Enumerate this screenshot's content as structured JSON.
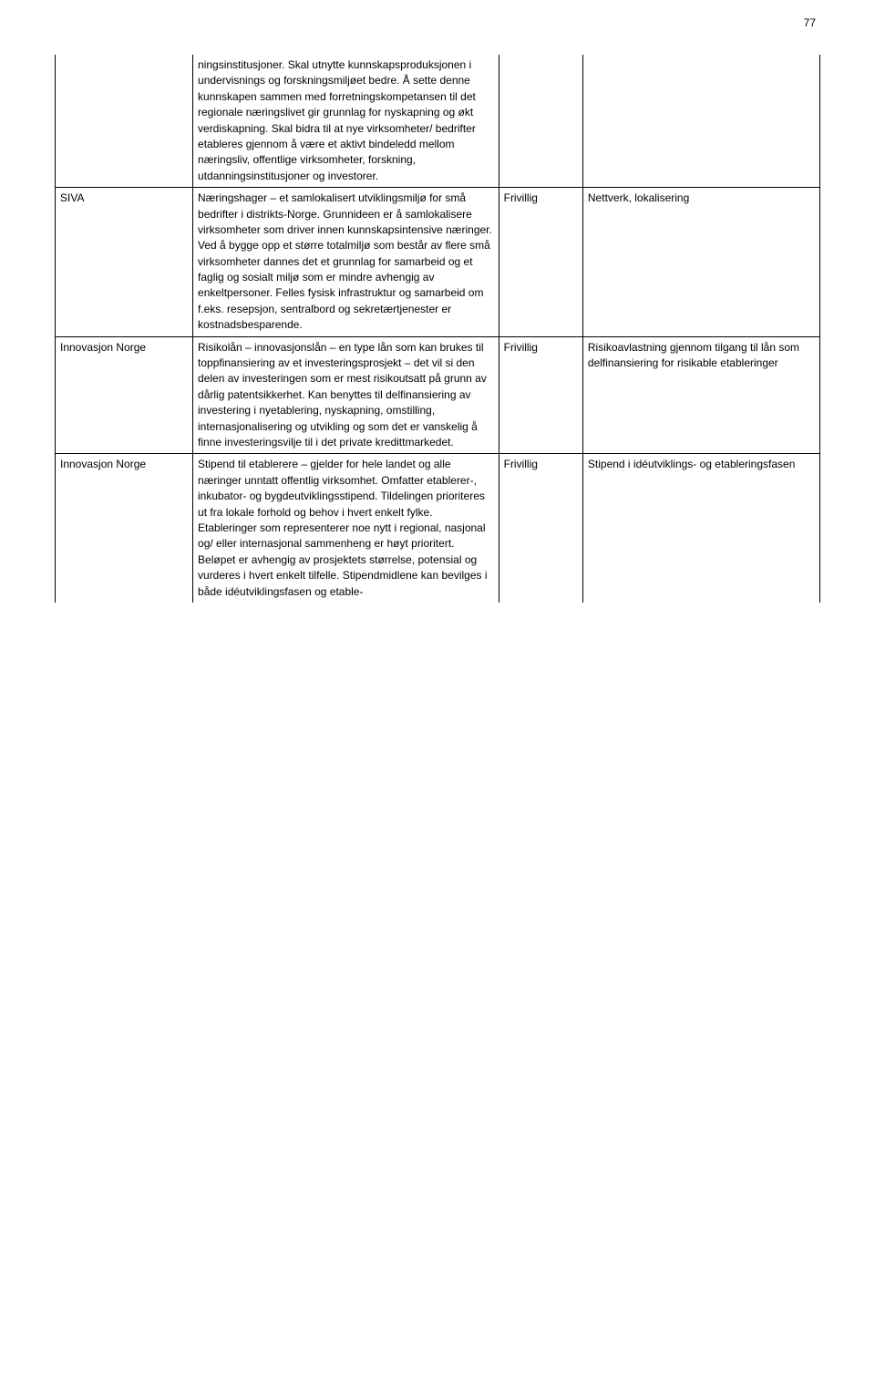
{
  "page_number": "77",
  "rows": [
    {
      "col1": "",
      "col2": "ningsinstitusjoner. Skal utnytte kunnskapsproduksjonen i undervisnings og forskningsmiljøet bedre. Å sette denne kunnskapen sammen med forretningskompetansen til det regionale næringslivet gir grunnlag for nyskapning og økt verdiskapning. Skal bidra til at nye virksomheter/ bedrifter etableres gjennom å være et aktivt bindeledd mellom næringsliv, offentlige virksomheter, forskning, utdanningsinstitusjoner og investorer.",
      "col3": "",
      "col4": ""
    },
    {
      "col1": "SIVA",
      "col2": "Næringshager – et samlokalisert utviklingsmiljø for små bedrifter i distrikts-Norge. Grunnideen er å samlokalisere virksomheter som driver innen kunnskapsintensive næringer. Ved å bygge opp et større totalmiljø som består av flere små virksomheter dannes det et grunnlag for samarbeid og et faglig og sosialt miljø som er mindre avhengig av enkeltpersoner. Felles fysisk infrastruktur og samarbeid om f.eks. resepsjon, sentralbord og sekretærtjenester er kostnadsbesparende.",
      "col3": "Frivillig",
      "col4": "Nettverk, lokalisering"
    },
    {
      "col1": "Innovasjon Norge",
      "col2": "Risikolån – innovasjonslån – en type lån som kan brukes til toppfinansiering av et investeringsprosjekt – det vil si den delen av investeringen som er mest risikoutsatt på grunn av dårlig patentsikkerhet. Kan benyttes til delfinansiering av investering i nyetablering, nyskapning, omstilling, internasjonalisering og utvikling og som det er vanskelig å finne investeringsvilje til i det private kredittmarkedet.",
      "col3": "Frivillig",
      "col4": "Risikoavlastning gjennom tilgang til lån som delfinansiering for risikable etableringer"
    },
    {
      "col1": "Innovasjon Norge",
      "col2": "Stipend til etablerere – gjelder for hele landet og alle næringer unntatt offentlig virksomhet. Omfatter etablerer-, inkubator- og bygdeutviklingsstipend. Tildelingen prioriteres ut fra lokale forhold og behov i hvert enkelt fylke. Etableringer som representerer noe nytt i regional, nasjonal og/ eller internasjonal sammenheng er høyt prioritert. Beløpet er avhengig av prosjektets størrelse, potensial og vurderes i hvert enkelt tilfelle. Stipendmidlene kan bevilges i både idéutviklingsfasen og etable-",
      "col3": "Frivillig",
      "col4": "Stipend i idéutviklings- og etableringsfasen"
    }
  ]
}
